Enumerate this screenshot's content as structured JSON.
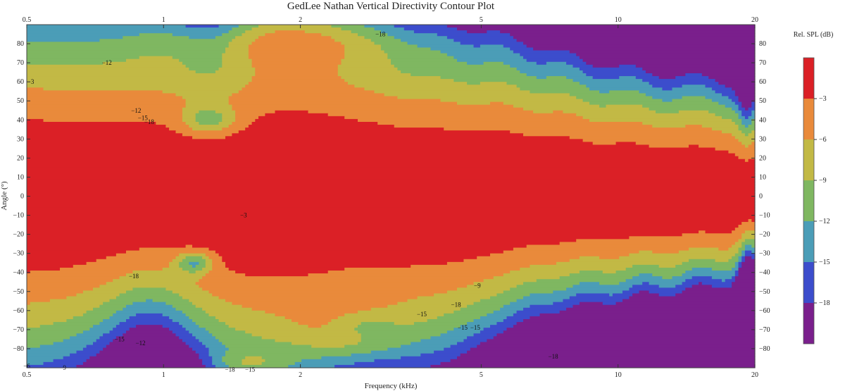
{
  "chart_data": {
    "type": "contour",
    "title": "GedLee Nathan Vertical Directivity Contour Plot",
    "xlabel": "Frequency (kHz)",
    "ylabel": "Angle (°)",
    "xscale": "log",
    "xlim": [
      0.5,
      20
    ],
    "ylim": [
      -90,
      90
    ],
    "x_ticks": [
      {
        "value": 0.5,
        "label": "0.5"
      },
      {
        "value": 1,
        "label": "1"
      },
      {
        "value": 2,
        "label": "2"
      },
      {
        "value": 5,
        "label": "5"
      },
      {
        "value": 10,
        "label": "10"
      },
      {
        "value": 20,
        "label": "20"
      }
    ],
    "y_ticks": [
      {
        "value": 80,
        "label": "80"
      },
      {
        "value": 70,
        "label": "70"
      },
      {
        "value": 60,
        "label": "60"
      },
      {
        "value": 50,
        "label": "50"
      },
      {
        "value": 40,
        "label": "40"
      },
      {
        "value": 30,
        "label": "30"
      },
      {
        "value": 20,
        "label": "20"
      },
      {
        "value": 10,
        "label": "10"
      },
      {
        "value": 0,
        "label": "0"
      },
      {
        "value": -10,
        "label": "−10"
      },
      {
        "value": -20,
        "label": "−20"
      },
      {
        "value": -30,
        "label": "−30"
      },
      {
        "value": -40,
        "label": "−40"
      },
      {
        "value": -50,
        "label": "−50"
      },
      {
        "value": -60,
        "label": "−60"
      },
      {
        "value": -70,
        "label": "−70"
      },
      {
        "value": -80,
        "label": "−80"
      }
    ],
    "legend": {
      "title": "Rel. SPL (dB)",
      "placement": "right",
      "bands": [
        {
          "range": [
            -3,
            0
          ],
          "color": "#db2026"
        },
        {
          "range": [
            -6,
            -3
          ],
          "color": "#e98a3b"
        },
        {
          "range": [
            -9,
            -6
          ],
          "color": "#c2b945"
        },
        {
          "range": [
            -12,
            -9
          ],
          "color": "#7fb761"
        },
        {
          "range": [
            -15,
            -12
          ],
          "color": "#4b9db7"
        },
        {
          "range": [
            -18,
            -15
          ],
          "color": "#3c4dcc"
        },
        {
          "range": [
            -21,
            -18
          ],
          "color": "#7a1f8c"
        }
      ],
      "ticks": [
        {
          "value": -3,
          "label": "−3"
        },
        {
          "value": -6,
          "label": "−6"
        },
        {
          "value": -9,
          "label": "−9"
        },
        {
          "value": -12,
          "label": "−12"
        },
        {
          "value": -15,
          "label": "−15"
        },
        {
          "value": -18,
          "label": "−18"
        }
      ]
    },
    "contour_levels": [
      -3,
      -6,
      -9,
      -12,
      -15,
      -18
    ],
    "contour_labels": [
      {
        "text": "−3",
        "x": 0.51,
        "y": 60
      },
      {
        "text": "−3",
        "x": 1.5,
        "y": -10
      },
      {
        "text": "−6",
        "x": 0.5,
        "y": -89
      },
      {
        "text": "−9",
        "x": 0.6,
        "y": -90
      },
      {
        "text": "−12",
        "x": 0.75,
        "y": 70
      },
      {
        "text": "−12",
        "x": 0.87,
        "y": 45
      },
      {
        "text": "−15",
        "x": 0.9,
        "y": 41
      },
      {
        "text": "−18",
        "x": 0.93,
        "y": 39
      },
      {
        "text": "−18",
        "x": 0.86,
        "y": -42
      },
      {
        "text": "−15",
        "x": 0.8,
        "y": -75
      },
      {
        "text": "−12",
        "x": 0.89,
        "y": -77
      },
      {
        "text": "−18",
        "x": 1.4,
        "y": -91
      },
      {
        "text": "−15",
        "x": 1.55,
        "y": -91
      },
      {
        "text": "−18",
        "x": 3.0,
        "y": 85
      },
      {
        "text": "−9",
        "x": 4.9,
        "y": -47
      },
      {
        "text": "−15",
        "x": 3.7,
        "y": -62
      },
      {
        "text": "−18",
        "x": 4.4,
        "y": -57
      },
      {
        "text": "−15",
        "x": 4.55,
        "y": -69
      },
      {
        "text": "−15",
        "x": 4.85,
        "y": -69
      },
      {
        "text": "−18",
        "x": 7.2,
        "y": -84
      }
    ]
  }
}
